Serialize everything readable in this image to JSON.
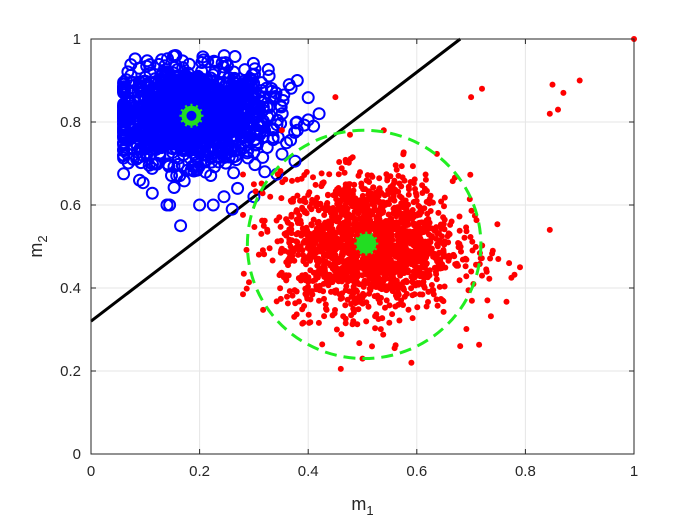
{
  "chart_data": {
    "type": "scatter",
    "title": "",
    "xlabel": {
      "base": "m",
      "sub": "1"
    },
    "ylabel": {
      "base": "m",
      "sub": "2"
    },
    "xlim": [
      0,
      1
    ],
    "ylim": [
      0,
      1
    ],
    "xticks": [
      0,
      0.2,
      0.4,
      0.6,
      0.8,
      1
    ],
    "yticks": [
      0,
      0.2,
      0.4,
      0.6,
      0.8,
      1
    ],
    "xtick_labels": [
      "0",
      "0.2",
      "0.4",
      "0.6",
      "0.8",
      "1"
    ],
    "ytick_labels": [
      "0",
      "0.2",
      "0.4",
      "0.6",
      "0.8",
      "1"
    ],
    "grid": true,
    "series": [
      {
        "marker": "open-circle",
        "color": "#0000ff",
        "center": [
          0.185,
          0.815
        ],
        "spread": [
          0.07,
          0.055
        ],
        "count": 1500,
        "outliers": [
          [
            0.13,
            0.95
          ],
          [
            0.215,
            0.945
          ],
          [
            0.365,
            0.89
          ],
          [
            0.38,
            0.9
          ],
          [
            0.355,
            0.865
          ],
          [
            0.42,
            0.82
          ],
          [
            0.4,
            0.805
          ],
          [
            0.38,
            0.78
          ],
          [
            0.41,
            0.79
          ],
          [
            0.065,
            0.8
          ],
          [
            0.14,
            0.6
          ],
          [
            0.165,
            0.55
          ],
          [
            0.2,
            0.6
          ],
          [
            0.225,
            0.6
          ],
          [
            0.26,
            0.59
          ],
          [
            0.3,
            0.62
          ],
          [
            0.32,
            0.68
          ],
          [
            0.36,
            0.75
          ],
          [
            0.27,
            0.64
          ],
          [
            0.245,
            0.62
          ]
        ]
      },
      {
        "marker": "filled-dot",
        "color": "#ff0000",
        "center": [
          0.51,
          0.505
        ],
        "spread": [
          0.08,
          0.08
        ],
        "count": 1800,
        "outliers": [
          [
            1.0,
            1.0
          ],
          [
            0.9,
            0.9
          ],
          [
            0.85,
            0.89
          ],
          [
            0.87,
            0.87
          ],
          [
            0.86,
            0.83
          ],
          [
            0.845,
            0.82
          ],
          [
            0.845,
            0.54
          ],
          [
            0.79,
            0.45
          ],
          [
            0.77,
            0.46
          ],
          [
            0.75,
            0.47
          ],
          [
            0.72,
            0.88
          ],
          [
            0.7,
            0.86
          ],
          [
            0.46,
            0.205
          ],
          [
            0.59,
            0.22
          ],
          [
            0.5,
            0.23
          ],
          [
            0.45,
            0.86
          ],
          [
            0.3,
            0.65
          ],
          [
            0.33,
            0.62
          ],
          [
            0.74,
            0.49
          ],
          [
            0.68,
            0.26
          ],
          [
            0.72,
            0.43
          ],
          [
            0.73,
            0.37
          ]
        ]
      }
    ],
    "centroids": [
      {
        "x": 0.185,
        "y": 0.815,
        "fill": "#0000ff",
        "ring": "#22dd22"
      },
      {
        "x": 0.507,
        "y": 0.507,
        "fill": "#22dd22",
        "ring": "#22dd22"
      }
    ],
    "boundary_line": {
      "x": [
        0,
        0.68
      ],
      "y": [
        0.32,
        1.0
      ],
      "color": "#000000"
    },
    "dashed_circle": {
      "cx": 0.503,
      "cy": 0.505,
      "rx": 0.215,
      "ry": 0.275,
      "color": "#22ee22"
    }
  }
}
